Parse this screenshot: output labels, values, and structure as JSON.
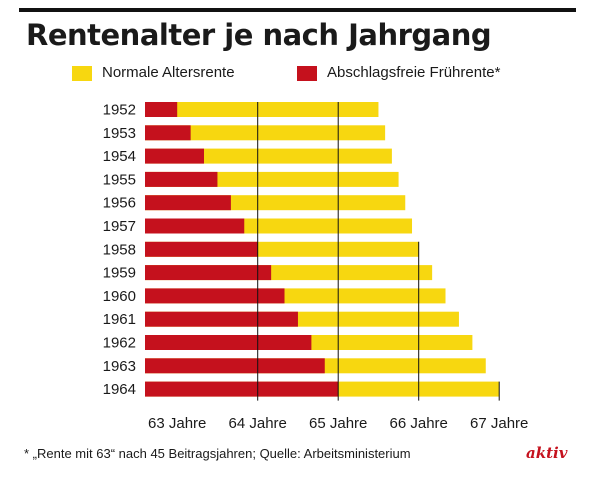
{
  "title": "Rentenalter je nach Jahrgang",
  "footnote": "* „Rente mit 63“ nach 45 Beitragsjahren; Quelle: Arbeitsministerium",
  "brand": "aktiv",
  "colors": {
    "normal": "#f7d710",
    "early": "#c5111d",
    "brand": "#c5111d",
    "rule": "#111111"
  },
  "chart_data": {
    "type": "bar",
    "orientation": "horizontal",
    "stacked": false,
    "title": "Rentenalter je nach Jahrgang",
    "xlabel": "",
    "ylabel": "",
    "categories": [
      "1952",
      "1953",
      "1954",
      "1955",
      "1956",
      "1957",
      "1958",
      "1959",
      "1960",
      "1961",
      "1962",
      "1963",
      "1964"
    ],
    "x_ticks": [
      "63 Jahre",
      "64 Jahre",
      "65 Jahre",
      "66 Jahre",
      "67 Jahre"
    ],
    "xlim": [
      62.6,
      67.1
    ],
    "legend": "top",
    "grid": "vertical lines at full years",
    "series": [
      {
        "name": "Normale Altersrente",
        "color": "#f7d710",
        "values": [
          65.5,
          65.583,
          65.667,
          65.75,
          65.833,
          65.917,
          66.0,
          66.167,
          66.333,
          66.5,
          66.667,
          66.833,
          67.0
        ]
      },
      {
        "name": "Abschlagsfreie Frührente*",
        "color": "#c5111d",
        "values": [
          63.0,
          63.167,
          63.333,
          63.5,
          63.667,
          63.833,
          64.0,
          64.167,
          64.333,
          64.5,
          64.667,
          64.833,
          65.0
        ]
      }
    ]
  }
}
